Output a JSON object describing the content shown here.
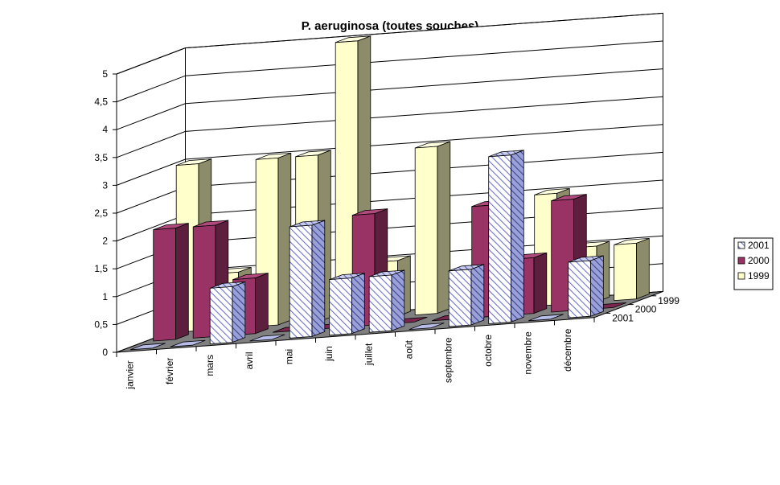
{
  "chart_data": {
    "type": "bar",
    "subtype": "3d-clustered-depth",
    "title": "P. aeruginosa (toutes souches)",
    "categories": [
      "janvier",
      "février",
      "mars",
      "avril",
      "mai",
      "juin",
      "juillet",
      "août",
      "septembre",
      "octobre",
      "novembre",
      "décembre"
    ],
    "series": [
      {
        "name": "2001",
        "color": "#d4d8f5",
        "pattern": "diagonal-hatch",
        "values": [
          0,
          0,
          1,
          0,
          2,
          1,
          1,
          0,
          1,
          3,
          0,
          1
        ]
      },
      {
        "name": "2000",
        "color": "#993366",
        "values": [
          2,
          2,
          1,
          0,
          0,
          2,
          0,
          0,
          2,
          1,
          2,
          0
        ]
      },
      {
        "name": "1999",
        "color": "#ffffcc",
        "values": [
          3,
          1,
          3,
          3,
          5,
          1,
          3,
          0,
          0,
          2,
          1,
          1
        ]
      }
    ],
    "yticks": [
      "0",
      "0,5",
      "1",
      "1,5",
      "2",
      "2,5",
      "3",
      "3,5",
      "4",
      "4,5",
      "5"
    ],
    "ylim": [
      0,
      5
    ],
    "depth_labels": [
      "1999",
      "2000",
      "2001"
    ],
    "legend": [
      "2001",
      "2000",
      "1999"
    ],
    "legend_position": "right",
    "wall_color": "#ffffff",
    "floor_color": "#808080",
    "gridlines": true
  }
}
